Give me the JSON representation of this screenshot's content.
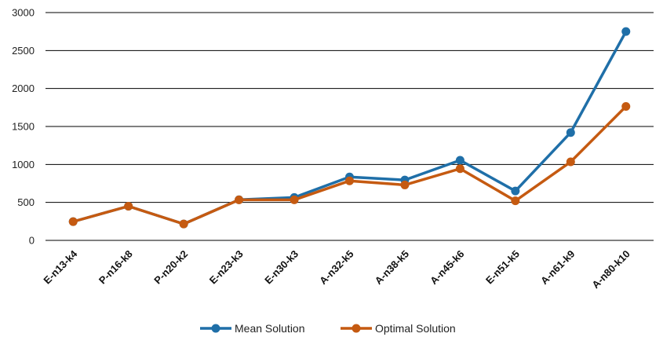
{
  "chart_data": {
    "type": "line",
    "title": "",
    "xlabel": "",
    "ylabel": "",
    "categories": [
      "E-n13-k4",
      "P-n16-k8",
      "P-n20-k2",
      "E-n23-k3",
      "E-n30-k3",
      "A-n32-k5",
      "A-n38-k5",
      "A-n45-k6",
      "E-n51-k5",
      "A-n61-k9",
      "A-n80-k10"
    ],
    "ylim": [
      0,
      3000
    ],
    "yticks": [
      0,
      500,
      1000,
      1500,
      2000,
      2500,
      3000
    ],
    "grid": true,
    "legend_position": "bottom",
    "series": [
      {
        "name": "Mean Solution",
        "color": "#1f6fa8",
        "values": [
          247,
          450,
          216,
          535,
          565,
          835,
          795,
          1055,
          650,
          1420,
          2750
        ]
      },
      {
        "name": "Optimal Solution",
        "color": "#c55a11",
        "values": [
          247,
          450,
          216,
          534,
          534,
          784,
          730,
          944,
          521,
          1034,
          1764
        ]
      }
    ]
  }
}
